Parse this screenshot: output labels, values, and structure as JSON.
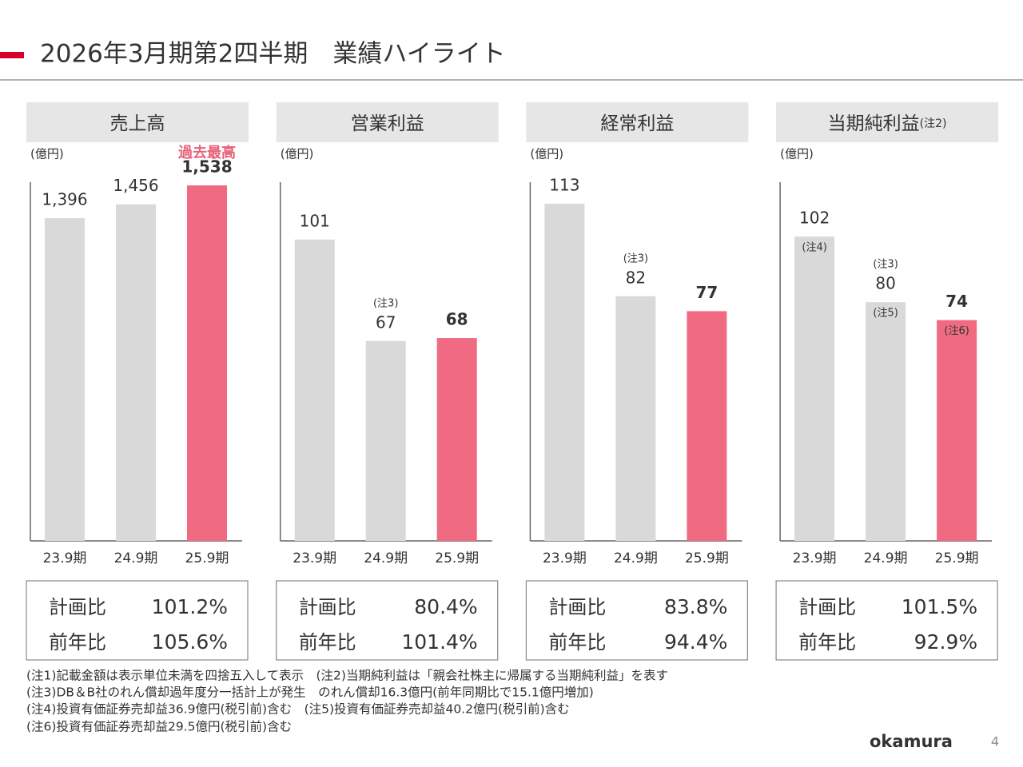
{
  "header": {
    "title": "2026年3月期第2四半期　業績ハイライト"
  },
  "chart_data": [
    {
      "type": "bar",
      "title": "売上高",
      "unit": "(億円)",
      "categories": [
        "23.9期",
        "24.9期",
        "25.9期"
      ],
      "values": [
        1396,
        1456,
        1538
      ],
      "value_labels": [
        "1,396",
        "1,456",
        "1,538"
      ],
      "colors": [
        "#d9d9d9",
        "#d9d9d9",
        "#f06b82"
      ],
      "highlight": 2,
      "annotations": [
        {
          "text": "過去最高",
          "category": 2,
          "position": "above",
          "color": "#e8607a"
        }
      ],
      "comparison": [
        {
          "label": "計画比",
          "value": "101.2%"
        },
        {
          "label": "前年比",
          "value": "105.6%"
        }
      ]
    },
    {
      "type": "bar",
      "title": "営業利益",
      "unit": "(億円)",
      "categories": [
        "23.9期",
        "24.9期",
        "25.9期"
      ],
      "values": [
        101,
        67,
        68
      ],
      "colors": [
        "#d9d9d9",
        "#d9d9d9",
        "#f06b82"
      ],
      "highlight": 2,
      "annotations": [
        {
          "text": "(注3)",
          "category": 1,
          "position": "above",
          "color": "#333333"
        }
      ],
      "comparison": [
        {
          "label": "計画比",
          "value": "80.4%"
        },
        {
          "label": "前年比",
          "value": "101.4%"
        }
      ]
    },
    {
      "type": "bar",
      "title": "経常利益",
      "unit": "(億円)",
      "categories": [
        "23.9期",
        "24.9期",
        "25.9期"
      ],
      "values": [
        113,
        82,
        77
      ],
      "colors": [
        "#d9d9d9",
        "#d9d9d9",
        "#f06b82"
      ],
      "highlight": 2,
      "annotations": [
        {
          "text": "(注3)",
          "category": 1,
          "position": "above",
          "color": "#333333"
        }
      ],
      "comparison": [
        {
          "label": "計画比",
          "value": "83.8%"
        },
        {
          "label": "前年比",
          "value": "94.4%"
        }
      ]
    },
    {
      "type": "bar",
      "title": "当期純利益",
      "title_note": "(注2)",
      "unit": "(億円)",
      "categories": [
        "23.9期",
        "24.9期",
        "25.9期"
      ],
      "values": [
        102,
        80,
        74
      ],
      "colors": [
        "#d9d9d9",
        "#d9d9d9",
        "#f06b82"
      ],
      "highlight": 2,
      "annotations": [
        {
          "text": "(注4)",
          "category": 0,
          "position": "inside",
          "color": "#333333"
        },
        {
          "text": "(注3)",
          "category": 1,
          "position": "above",
          "color": "#333333"
        },
        {
          "text": "(注5)",
          "category": 1,
          "position": "inside",
          "color": "#333333"
        },
        {
          "text": "(注6)",
          "category": 2,
          "position": "inside",
          "color": "#333333"
        }
      ],
      "comparison": [
        {
          "label": "計画比",
          "value": "101.5%"
        },
        {
          "label": "前年比",
          "value": "92.9%"
        }
      ]
    }
  ],
  "notes": [
    "(注1)記載金額は表示単位未満を四捨五入して表示　(注2)当期純利益は「親会社株主に帰属する当期純利益」を表す",
    "(注3)DB＆B社のれん償却過年度分一括計上が発生　のれん償却16.3億円(前年同期比で15.1億円増加)",
    "(注4)投資有価証券売却益36.9億円(税引前)含む　(注5)投資有価証券売却益40.2億円(税引前)含む",
    "(注6)投資有価証券売却益29.5億円(税引前)含む"
  ],
  "footer": {
    "logo": "okamura",
    "page": "4"
  }
}
